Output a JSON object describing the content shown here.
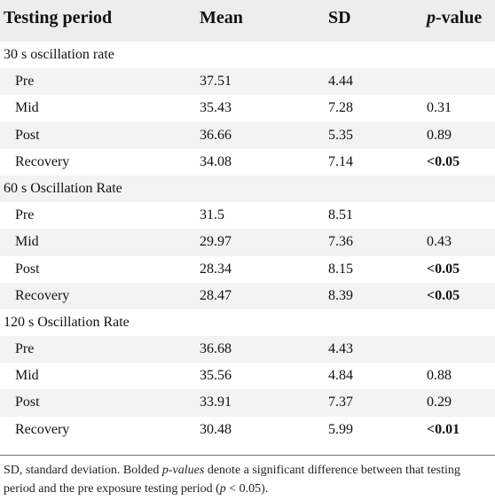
{
  "table": {
    "headers": [
      "Testing period",
      "Mean",
      "SD",
      "p",
      "-value"
    ],
    "rows": [
      {
        "kind": "section",
        "label": "30 s oscillation rate",
        "mean": "",
        "sd": "",
        "p": "",
        "p_bold": false
      },
      {
        "kind": "sub",
        "label": "Pre",
        "mean": "37.51",
        "sd": "4.44",
        "p": "",
        "p_bold": false
      },
      {
        "kind": "sub",
        "label": "Mid",
        "mean": "35.43",
        "sd": "7.28",
        "p": "0.31",
        "p_bold": false
      },
      {
        "kind": "sub",
        "label": "Post",
        "mean": "36.66",
        "sd": "5.35",
        "p": "0.89",
        "p_bold": false
      },
      {
        "kind": "sub",
        "label": "Recovery",
        "mean": "34.08",
        "sd": "7.14",
        "p": "<0.05",
        "p_bold": true
      },
      {
        "kind": "section",
        "label": "60 s Oscillation Rate",
        "mean": "",
        "sd": "",
        "p": "",
        "p_bold": false
      },
      {
        "kind": "sub",
        "label": "Pre",
        "mean": "31.5",
        "sd": "8.51",
        "p": "",
        "p_bold": false
      },
      {
        "kind": "sub",
        "label": "Mid",
        "mean": "29.97",
        "sd": "7.36",
        "p": "0.43",
        "p_bold": false
      },
      {
        "kind": "sub",
        "label": "Post",
        "mean": "28.34",
        "sd": "8.15",
        "p": "<0.05",
        "p_bold": true
      },
      {
        "kind": "sub",
        "label": "Recovery",
        "mean": "28.47",
        "sd": "8.39",
        "p": "<0.05",
        "p_bold": true
      },
      {
        "kind": "section",
        "label": "120 s Oscillation Rate",
        "mean": "",
        "sd": "",
        "p": "",
        "p_bold": false
      },
      {
        "kind": "sub",
        "label": "Pre",
        "mean": "36.68",
        "sd": "4.43",
        "p": "",
        "p_bold": false
      },
      {
        "kind": "sub",
        "label": "Mid",
        "mean": "35.56",
        "sd": "4.84",
        "p": "0.88",
        "p_bold": false
      },
      {
        "kind": "sub",
        "label": "Post",
        "mean": "33.91",
        "sd": "7.37",
        "p": "0.29",
        "p_bold": false
      },
      {
        "kind": "sub",
        "label": "Recovery",
        "mean": "30.48",
        "sd": "5.99",
        "p": "<0.01",
        "p_bold": true
      }
    ]
  },
  "footnote": {
    "part1": "SD, standard deviation. Bolded ",
    "italic1": "p-values",
    "part2": " denote a significant difference between that testing period and the pre exposure testing period (",
    "italic2": "p",
    "part3": " < 0.05)."
  }
}
